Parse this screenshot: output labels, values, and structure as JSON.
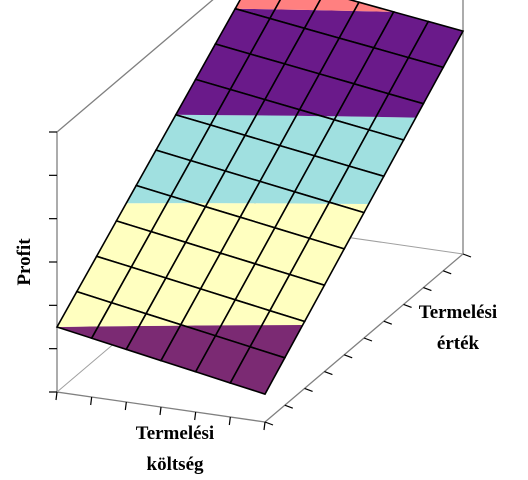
{
  "chart_data": {
    "type": "surface",
    "title": "",
    "xlabel": [
      "Termelési",
      "költség"
    ],
    "ylabel": [
      "Termelési",
      "érték"
    ],
    "zlabel": "Profit",
    "x_ticks": 6,
    "y_ticks": 10,
    "z_ticks": 6,
    "grid": false,
    "legend": "none",
    "surface": {
      "grid_x": 6,
      "grid_y": 10,
      "description_note": "",
      "z_corners": {
        "x0_y0": 0.0,
        "x6_y0": -0.2,
        "x0_y10": 1.0,
        "x6_y10": 0.85
      }
    },
    "bands": [
      {
        "from": -0.35,
        "to": 0.0,
        "color": "#7b2a73"
      },
      {
        "from": 0.0,
        "to": 0.35,
        "color": "#ffffc0"
      },
      {
        "from": 0.35,
        "to": 0.6,
        "color": "#a0e0e0"
      },
      {
        "from": 0.6,
        "to": 0.9,
        "color": "#6a1a8a"
      },
      {
        "from": 0.9,
        "to": 1.1,
        "color": "#ff8080"
      }
    ]
  }
}
